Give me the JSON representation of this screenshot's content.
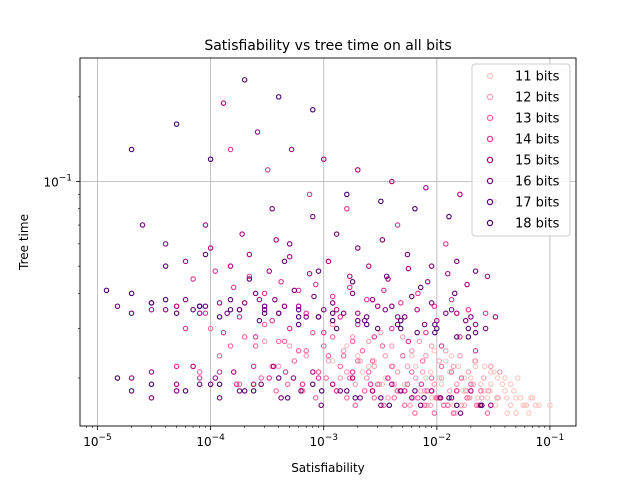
{
  "chart_data": {
    "type": "scatter",
    "title": "Satisfiability vs tree time on all bits",
    "xlabel": "Satisfiability",
    "ylabel": "Tree time",
    "x_scale": "log",
    "y_scale": "log",
    "xlim": [
      7e-06,
      0.17
    ],
    "ylim": [
      0.0135,
      0.275
    ],
    "x_ticks": [
      {
        "value": 1e-05,
        "base": "10",
        "exp": "−5"
      },
      {
        "value": 0.0001,
        "base": "10",
        "exp": "−4"
      },
      {
        "value": 0.001,
        "base": "10",
        "exp": "−3"
      },
      {
        "value": 0.01,
        "base": "10",
        "exp": "−2"
      },
      {
        "value": 0.1,
        "base": "10",
        "exp": "−1"
      }
    ],
    "y_ticks": [
      {
        "value": 0.1,
        "base": "10",
        "exp": "−1"
      }
    ],
    "grid": true,
    "legend_position": "upper-right",
    "marker": "hollow-circle",
    "series": [
      {
        "name": "11 bits",
        "color": "#fcc5c0",
        "x": [
          0.0025,
          0.0035,
          0.0045,
          0.0055,
          0.0065,
          0.008,
          0.009,
          0.011,
          0.013,
          0.015,
          0.017,
          0.02,
          0.023,
          0.026,
          0.03,
          0.035,
          0.04,
          0.045,
          0.05,
          0.06,
          0.07,
          0.08,
          0.1,
          0.006,
          0.012,
          0.022,
          0.03,
          0.04,
          0.045,
          0.055,
          0.065,
          0.075,
          0.009,
          0.014,
          0.019,
          0.024,
          0.033,
          0.042,
          0.05,
          0.0016,
          0.002,
          0.0028,
          0.0041,
          0.0052,
          0.0072,
          0.0088,
          0.0105,
          0.0155,
          0.0185,
          0.0245,
          0.028,
          0.032,
          0.038,
          0.048,
          0.058,
          0.068,
          0.0095,
          0.0135,
          0.0175,
          0.0215,
          0.0265,
          0.0295,
          0.0345,
          0.0415,
          0.062,
          0.052,
          0.0012,
          0.0022,
          0.0033,
          0.0044
        ],
        "y": [
          0.022,
          0.02,
          0.021,
          0.019,
          0.022,
          0.02,
          0.018,
          0.019,
          0.021,
          0.019,
          0.018,
          0.02,
          0.017,
          0.018,
          0.019,
          0.017,
          0.018,
          0.016,
          0.017,
          0.016,
          0.017,
          0.016,
          0.016,
          0.024,
          0.023,
          0.022,
          0.021,
          0.02,
          0.019,
          0.017,
          0.015,
          0.016,
          0.017,
          0.016,
          0.017,
          0.016,
          0.016,
          0.015,
          0.015,
          0.026,
          0.024,
          0.023,
          0.022,
          0.019,
          0.018,
          0.021,
          0.02,
          0.022,
          0.018,
          0.019,
          0.017,
          0.021,
          0.019,
          0.018,
          0.016,
          0.017,
          0.025,
          0.024,
          0.02,
          0.023,
          0.022,
          0.018,
          0.02,
          0.017,
          0.016,
          0.02,
          0.023,
          0.021,
          0.019,
          0.018
        ]
      },
      {
        "name": "12 bits",
        "color": "#fa9fb5",
        "x": [
          0.0008,
          0.0012,
          0.0018,
          0.0025,
          0.0032,
          0.004,
          0.005,
          0.006,
          0.007,
          0.008,
          0.009,
          0.0105,
          0.012,
          0.014,
          0.016,
          0.019,
          0.022,
          0.026,
          0.03,
          0.036,
          0.0005,
          0.0007,
          0.0015,
          0.0021,
          0.0028,
          0.0035,
          0.0045,
          0.0055,
          0.0065,
          0.0075,
          0.0095,
          0.011,
          0.013,
          0.015,
          0.018,
          0.021,
          0.025,
          0.0004,
          0.0009,
          0.0014,
          0.0019,
          0.0027,
          0.0037,
          0.0047,
          0.0058,
          0.0068,
          0.0082,
          0.0098,
          0.0115,
          0.0135,
          0.0165,
          0.0195,
          0.0235,
          0.0285,
          0.034,
          0.0003,
          0.0006,
          0.0011,
          0.0016,
          0.0024,
          0.0031,
          0.0042,
          0.0052,
          0.0062,
          0.0078,
          0.0088,
          0.0102,
          0.0125,
          0.0145,
          0.0175
        ],
        "y": [
          0.029,
          0.031,
          0.028,
          0.027,
          0.029,
          0.026,
          0.028,
          0.025,
          0.027,
          0.024,
          0.026,
          0.023,
          0.025,
          0.022,
          0.024,
          0.021,
          0.023,
          0.02,
          0.022,
          0.021,
          0.026,
          0.024,
          0.025,
          0.023,
          0.022,
          0.024,
          0.021,
          0.022,
          0.02,
          0.021,
          0.019,
          0.02,
          0.018,
          0.019,
          0.018,
          0.019,
          0.017,
          0.022,
          0.021,
          0.02,
          0.019,
          0.018,
          0.017,
          0.018,
          0.016,
          0.017,
          0.016,
          0.017,
          0.016,
          0.017,
          0.016,
          0.017,
          0.016,
          0.018,
          0.017,
          0.027,
          0.025,
          0.023,
          0.021,
          0.02,
          0.019,
          0.019,
          0.018,
          0.017,
          0.018,
          0.016,
          0.017,
          0.016,
          0.015,
          0.016
        ]
      },
      {
        "name": "13 bits",
        "color": "#f768a1",
        "x": [
          0.0001,
          0.00015,
          0.0002,
          0.0003,
          0.0004,
          0.0005,
          0.0006,
          0.0008,
          0.001,
          0.0012,
          0.0015,
          0.0018,
          0.0022,
          0.0027,
          0.0033,
          0.004,
          0.005,
          0.006,
          0.0075,
          0.009,
          0.011,
          0.0135,
          0.0165,
          0.02,
          0.0245,
          0.00012,
          0.00025,
          0.00035,
          0.00045,
          0.00055,
          0.0007,
          0.0009,
          0.0011,
          0.0014,
          0.0017,
          0.002,
          0.0025,
          0.003,
          0.0037,
          0.0045,
          0.0055,
          0.0068,
          0.0082,
          0.01,
          0.0125,
          0.015,
          0.0185,
          0.0225,
          0.028,
          8e-05,
          0.00018,
          0.00028,
          0.00038,
          0.00048,
          0.00065,
          0.00085,
          0.00105,
          0.0013,
          0.0016,
          0.0019,
          0.0023,
          0.0028,
          0.0034,
          0.0042,
          0.0052,
          0.0064,
          0.0078,
          0.0095,
          0.0115,
          0.014
        ],
        "y": [
          0.03,
          0.026,
          0.028,
          0.031,
          0.027,
          0.03,
          0.025,
          0.029,
          0.026,
          0.028,
          0.024,
          0.027,
          0.025,
          0.023,
          0.026,
          0.022,
          0.024,
          0.021,
          0.023,
          0.02,
          0.022,
          0.021,
          0.02,
          0.019,
          0.018,
          0.024,
          0.026,
          0.022,
          0.027,
          0.023,
          0.025,
          0.021,
          0.024,
          0.022,
          0.02,
          0.023,
          0.021,
          0.019,
          0.02,
          0.018,
          0.019,
          0.017,
          0.018,
          0.017,
          0.016,
          0.018,
          0.017,
          0.016,
          0.015,
          0.021,
          0.019,
          0.02,
          0.018,
          0.019,
          0.018,
          0.017,
          0.02,
          0.018,
          0.017,
          0.016,
          0.018,
          0.017,
          0.016,
          0.017,
          0.016,
          0.015,
          0.016,
          0.015,
          0.016,
          0.015
        ]
      },
      {
        "name": "14 bits",
        "color": "#dd3497",
        "x": [
          6e-05,
          9e-05,
          0.00013,
          0.00018,
          0.00025,
          0.00035,
          0.0005,
          0.0007,
          0.001,
          0.0014,
          0.002,
          0.0028,
          0.004,
          0.0056,
          0.008,
          0.011,
          0.016,
          0.022,
          7e-05,
          0.00011,
          0.00016,
          0.00022,
          0.0003,
          0.00042,
          0.0006,
          0.00085,
          0.0012,
          0.0017,
          0.0024,
          0.0034,
          0.0048,
          0.0068,
          0.0095,
          0.0135,
          0.019,
          0.027,
          5e-05,
          8e-05,
          0.00012,
          0.00017,
          0.00024,
          0.00033,
          0.00046,
          0.00065,
          0.0009,
          0.0013,
          0.0018,
          0.0026,
          0.0037,
          0.0052,
          0.0073,
          0.0105,
          0.015,
          0.00015,
          0.00032,
          0.00075,
          0.0016,
          0.0045,
          0.012
        ],
        "y": [
          0.03,
          0.034,
          0.029,
          0.033,
          0.028,
          0.032,
          0.03,
          0.034,
          0.029,
          0.033,
          0.031,
          0.028,
          0.03,
          0.027,
          0.029,
          0.026,
          0.028,
          0.025,
          0.045,
          0.048,
          0.042,
          0.046,
          0.04,
          0.044,
          0.041,
          0.043,
          0.039,
          0.042,
          0.038,
          0.041,
          0.037,
          0.04,
          0.036,
          0.038,
          0.035,
          0.034,
          0.022,
          0.02,
          0.021,
          0.019,
          0.022,
          0.02,
          0.021,
          0.019,
          0.02,
          0.018,
          0.021,
          0.019,
          0.02,
          0.018,
          0.019,
          0.017,
          0.018,
          0.13,
          0.11,
          0.09,
          0.08,
          0.07,
          0.06
        ]
      },
      {
        "name": "15 bits",
        "color": "#ae017e",
        "x": [
          3e-05,
          5e-05,
          8e-05,
          0.00012,
          0.00018,
          0.00027,
          0.0004,
          0.0006,
          0.0009,
          0.0013,
          0.002,
          0.003,
          0.0045,
          0.0067,
          0.01,
          0.015,
          0.022,
          0.033,
          4e-05,
          6e-05,
          0.0001,
          0.00015,
          0.00022,
          0.00033,
          0.0005,
          0.00075,
          0.0011,
          0.0017,
          0.0025,
          0.0037,
          0.0056,
          0.0083,
          0.0125,
          0.0185,
          0.028,
          2e-05,
          3e-05,
          5e-05,
          7e-05,
          0.00011,
          0.00016,
          0.00024,
          0.00036,
          0.00054,
          0.0008,
          0.0012,
          0.0018,
          0.0027,
          0.004,
          0.006,
          0.009,
          0.0135,
          0.02,
          0.03,
          0.00013,
          0.00026,
          0.00052,
          0.001,
          0.002,
          0.004,
          0.008,
          0.016,
          0.032,
          9e-05,
          0.00019,
          0.00038
        ],
        "y": [
          0.035,
          0.036,
          0.034,
          0.037,
          0.035,
          0.038,
          0.034,
          0.036,
          0.033,
          0.035,
          0.034,
          0.036,
          0.033,
          0.035,
          0.032,
          0.034,
          0.031,
          0.033,
          0.06,
          0.052,
          0.058,
          0.05,
          0.055,
          0.048,
          0.054,
          0.047,
          0.052,
          0.046,
          0.05,
          0.045,
          0.049,
          0.044,
          0.047,
          0.043,
          0.046,
          0.02,
          0.021,
          0.019,
          0.022,
          0.02,
          0.021,
          0.019,
          0.022,
          0.02,
          0.021,
          0.019,
          0.02,
          0.018,
          0.019,
          0.017,
          0.018,
          0.017,
          0.018,
          0.016,
          0.19,
          0.15,
          0.13,
          0.12,
          0.11,
          0.1,
          0.095,
          0.09,
          0.085,
          0.07,
          0.065,
          0.062
        ]
      },
      {
        "name": "16 bits",
        "color": "#7a0177",
        "x": [
          1.5e-05,
          2e-05,
          3e-05,
          4e-05,
          6e-05,
          9e-05,
          0.00014,
          0.0002,
          0.0003,
          0.00045,
          0.0007,
          0.001,
          0.0015,
          0.0023,
          0.0035,
          0.0052,
          0.0078,
          0.012,
          0.018,
          0.027,
          0.00025,
          0.00037,
          0.00055,
          0.00082,
          0.0012,
          0.0018,
          0.0027,
          0.004,
          0.006,
          0.009,
          0.0135,
          0.02,
          2e-05,
          3e-05,
          5e-05,
          8e-05,
          0.00012,
          0.00018,
          0.00028,
          0.00042,
          0.00063,
          0.00095,
          0.0014,
          0.0021,
          0.0032,
          0.0048,
          0.0072,
          0.0108,
          0.0162,
          0.0243,
          2.5e-05,
          0.00035,
          0.0005,
          0.0008,
          0.0013,
          0.002,
          0.0033,
          0.0055,
          0.009,
          0.015,
          0.022
        ],
        "y": [
          0.036,
          0.034,
          0.037,
          0.035,
          0.038,
          0.036,
          0.034,
          0.037,
          0.035,
          0.036,
          0.033,
          0.035,
          0.034,
          0.032,
          0.035,
          0.033,
          0.031,
          0.034,
          0.032,
          0.03,
          0.04,
          0.038,
          0.041,
          0.039,
          0.037,
          0.04,
          0.038,
          0.036,
          0.039,
          0.037,
          0.035,
          0.033,
          0.018,
          0.017,
          0.018,
          0.019,
          0.017,
          0.018,
          0.019,
          0.017,
          0.018,
          0.016,
          0.018,
          0.017,
          0.016,
          0.018,
          0.016,
          0.017,
          0.015,
          0.016,
          0.07,
          0.08,
          0.06,
          0.075,
          0.065,
          0.058,
          0.062,
          0.055,
          0.05,
          0.052,
          0.048
        ]
      },
      {
        "name": "17 bits",
        "color": "#5a0071",
        "x": [
          5e-05,
          8e-05,
          0.00012,
          0.00018,
          0.00027,
          0.0004,
          0.0006,
          0.0009,
          0.0013,
          0.002,
          0.003,
          0.0045,
          0.0067,
          0.01,
          0.015,
          0.022,
          3e-05,
          7e-05,
          0.00015,
          0.0003,
          0.0006,
          0.0012,
          0.0024,
          0.0048,
          0.0096,
          0.019,
          0.0001,
          0.0002,
          0.0004,
          0.0008,
          0.0016,
          0.0032,
          0.0064,
          0.0128,
          0.025,
          4e-05,
          9e-05,
          0.00022,
          0.00045,
          0.0009,
          0.0018,
          0.0036,
          0.0072,
          0.0144
        ],
        "y": [
          0.034,
          0.036,
          0.033,
          0.035,
          0.032,
          0.034,
          0.031,
          0.033,
          0.03,
          0.032,
          0.03,
          0.031,
          0.029,
          0.03,
          0.028,
          0.029,
          0.037,
          0.035,
          0.038,
          0.036,
          0.035,
          0.034,
          0.033,
          0.032,
          0.031,
          0.03,
          0.019,
          0.018,
          0.02,
          0.019,
          0.018,
          0.017,
          0.018,
          0.017,
          0.016,
          0.05,
          0.055,
          0.045,
          0.052,
          0.048,
          0.044,
          0.046,
          0.042,
          0.04
        ]
      },
      {
        "name": "18 bits",
        "color": "#49006a",
        "x": [
          1.2e-05,
          2e-05,
          4e-05,
          8e-05,
          0.00015,
          0.0003,
          0.0006,
          0.0012,
          0.0024,
          0.0048,
          0.0096,
          0.019,
          1.5e-05,
          3e-05,
          6e-05,
          0.00012,
          0.00024,
          0.00048,
          0.00096,
          0.0019,
          0.0038,
          0.0077,
          0.015,
          2e-05,
          5e-05,
          0.0001,
          0.0002,
          0.0004,
          0.0008,
          0.0016,
          0.0032,
          0.0064,
          0.0128
        ],
        "y": [
          0.041,
          0.04,
          0.038,
          0.036,
          0.035,
          0.034,
          0.033,
          0.032,
          0.031,
          0.03,
          0.029,
          0.028,
          0.02,
          0.019,
          0.018,
          0.019,
          0.018,
          0.017,
          0.018,
          0.017,
          0.016,
          0.017,
          0.016,
          0.13,
          0.16,
          0.12,
          0.23,
          0.2,
          0.18,
          0.09,
          0.085,
          0.08,
          0.075
        ]
      }
    ]
  }
}
